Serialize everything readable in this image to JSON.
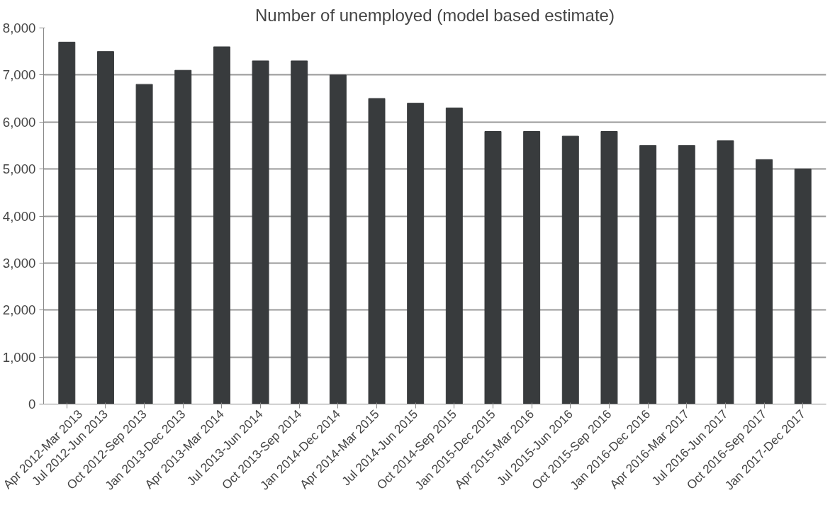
{
  "chart_data": {
    "type": "bar",
    "title": "Number of unemployed (model based estimate)",
    "categories": [
      "Apr 2012-Mar 2013",
      "Jul 2012-Jun 2013",
      "Oct 2012-Sep 2013",
      "Jan 2013-Dec 2013",
      "Apr 2013-Mar 2014",
      "Jul 2013-Jun 2014",
      "Oct 2013-Sep 2014",
      "Jan 2014-Dec 2014",
      "Apr 2014-Mar 2015",
      "Jul 2014-Jun 2015",
      "Oct 2014-Sep 2015",
      "Jan 2015-Dec 2015",
      "Apr 2015-Mar 2016",
      "Jul 2015-Jun 2016",
      "Oct 2015-Sep 2016",
      "Jan 2016-Dec 2016",
      "Apr 2016-Mar 2017",
      "Jul 2016-Jun 2017",
      "Oct 2016-Sep 2017",
      "Jan 2017-Dec 2017"
    ],
    "values": [
      7700,
      7500,
      6800,
      7100,
      7600,
      7300,
      7300,
      7000,
      6500,
      6400,
      6300,
      5800,
      5800,
      5700,
      5800,
      5500,
      5500,
      5600,
      5200,
      5000
    ],
    "color": "#383b3d",
    "ylim": [
      0,
      8000
    ],
    "yticks": [
      {
        "value": 0,
        "label": "0"
      },
      {
        "value": 1000,
        "label": "1,000"
      },
      {
        "value": 2000,
        "label": "2,000"
      },
      {
        "value": 3000,
        "label": "3,000"
      },
      {
        "value": 4000,
        "label": "4,000"
      },
      {
        "value": 5000,
        "label": "5,000"
      },
      {
        "value": 6000,
        "label": "6,000"
      },
      {
        "value": 7000,
        "label": "7,000"
      },
      {
        "value": 8000,
        "label": "8,000"
      }
    ],
    "grid": "y"
  }
}
